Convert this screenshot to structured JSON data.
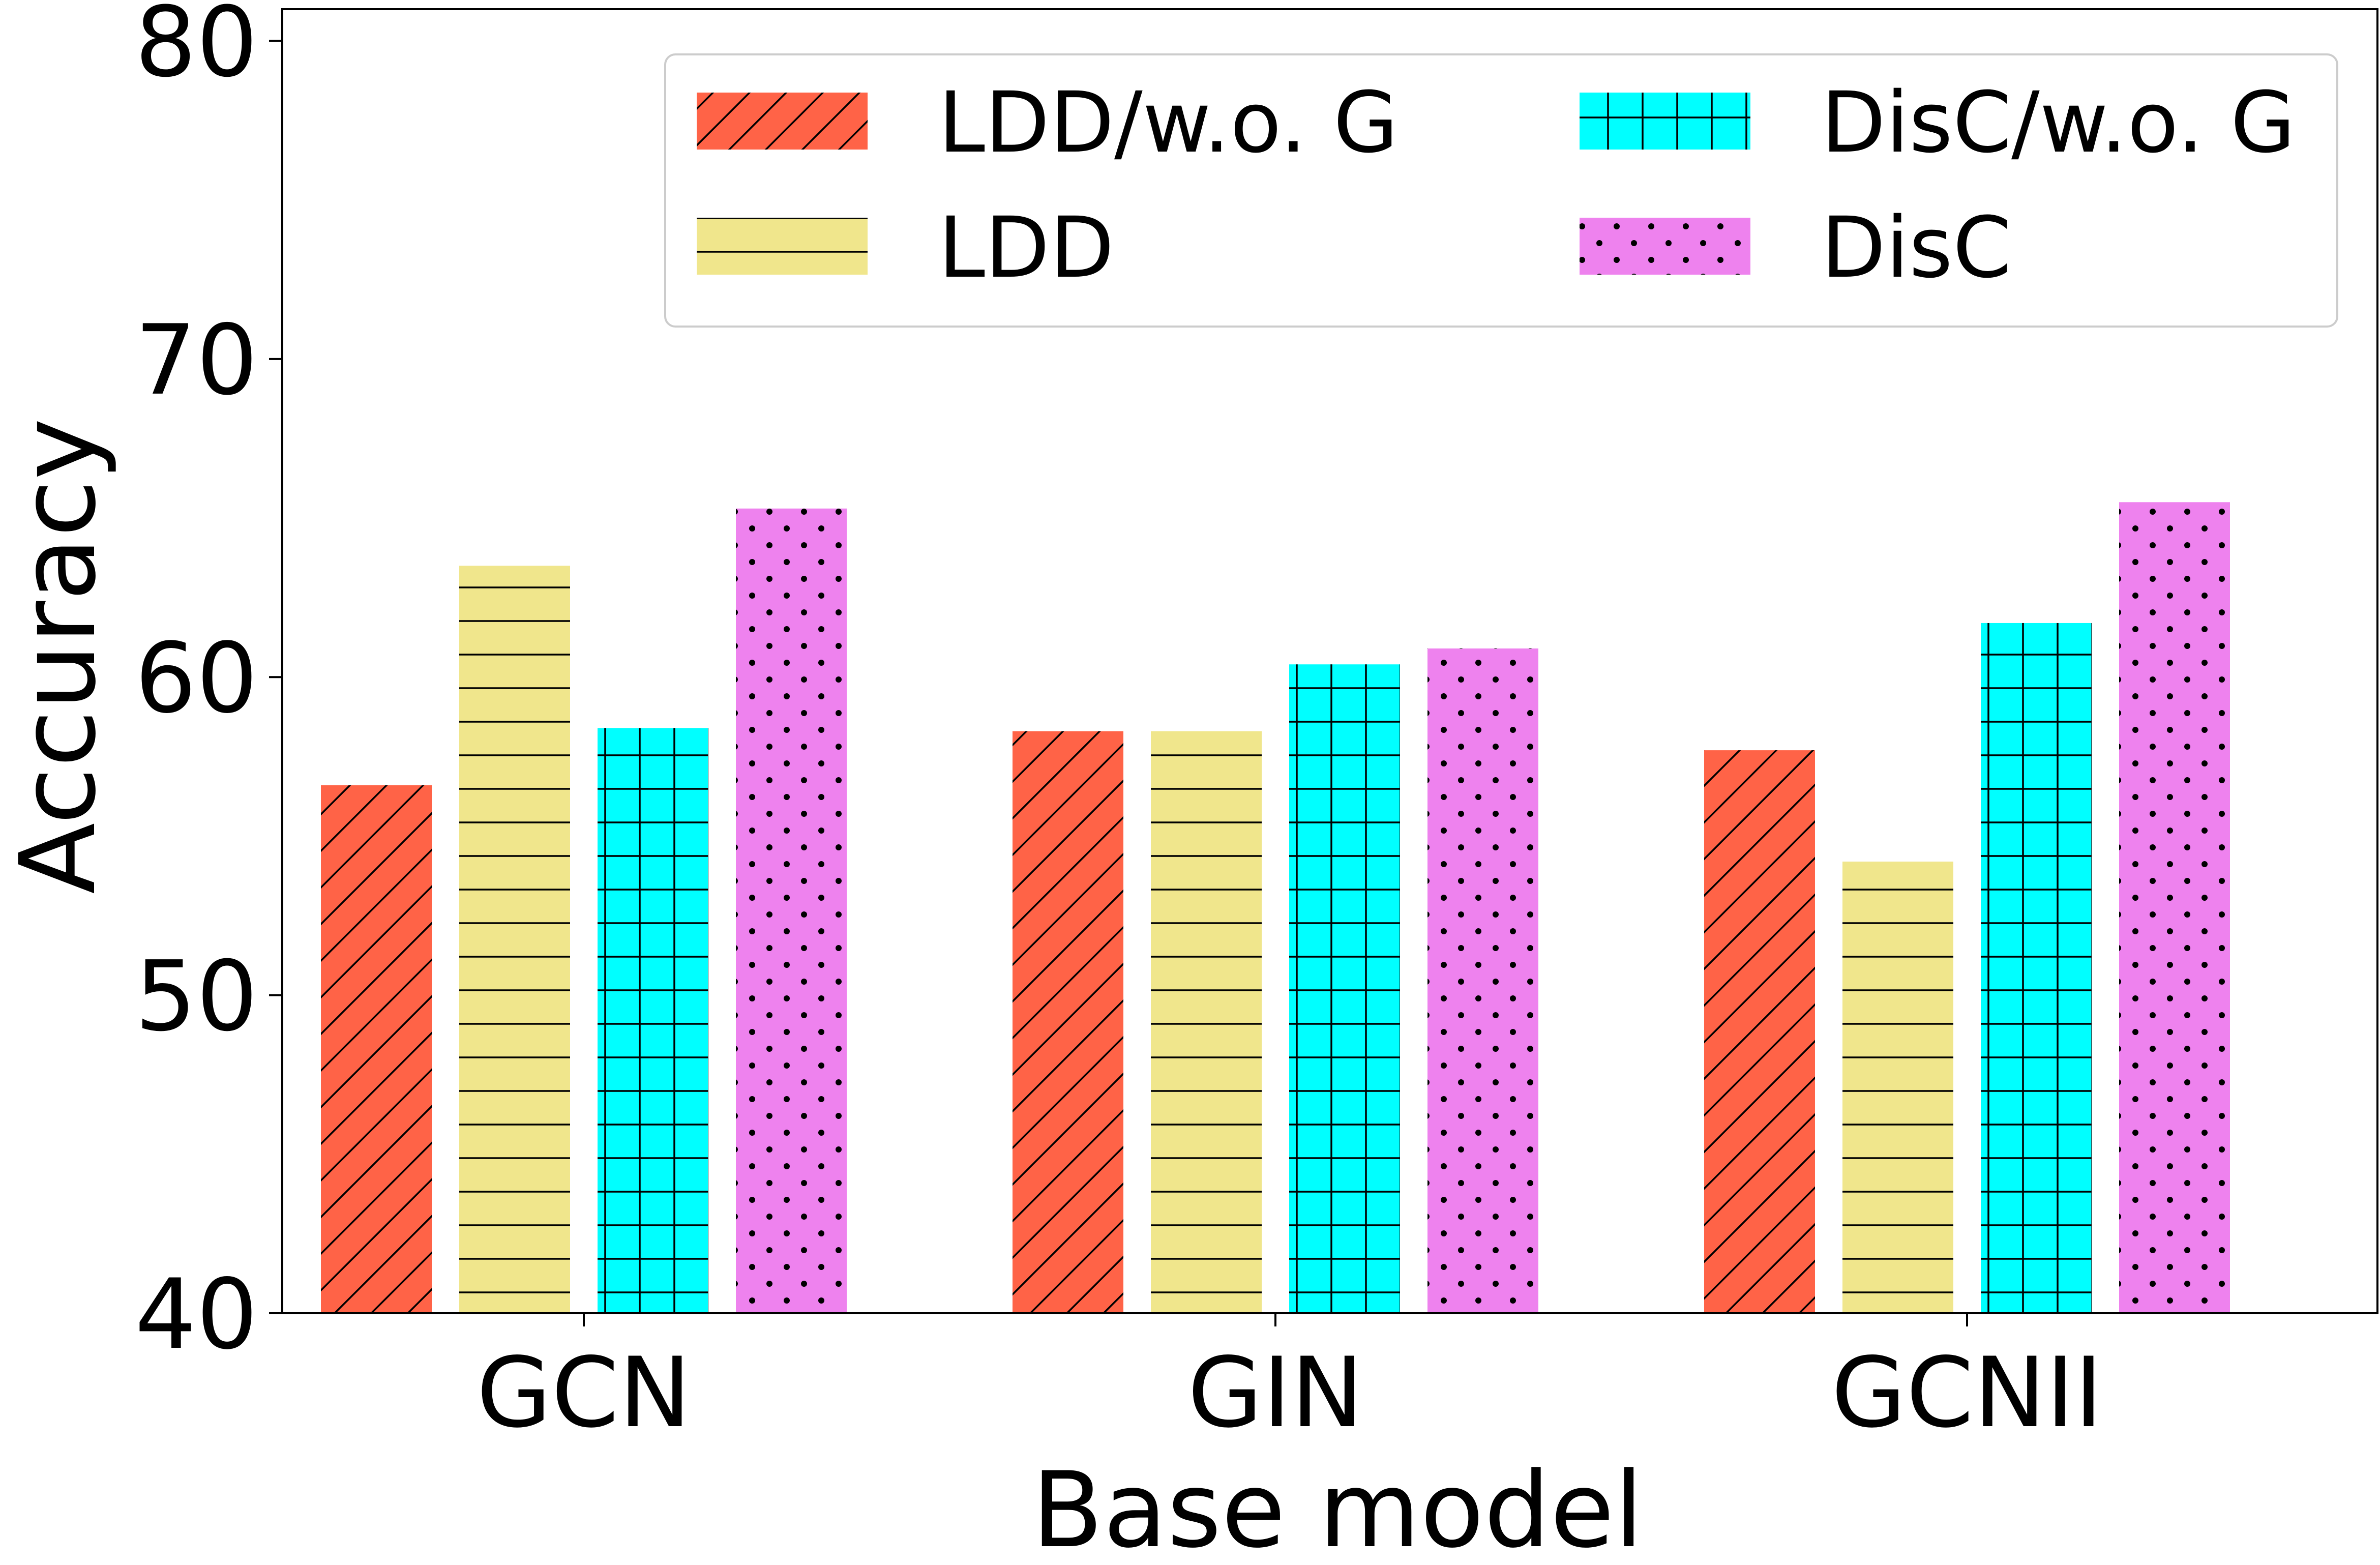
{
  "chart_data": {
    "type": "bar",
    "title": "",
    "xlabel": "Base model",
    "ylabel": "Accuracy",
    "ylim": [
      40,
      81
    ],
    "yticks": [
      40,
      50,
      60,
      70,
      80
    ],
    "categories": [
      "GCN",
      "GIN",
      "GCNII"
    ],
    "series": [
      {
        "name": "LDD/w.o. G",
        "values": [
          56.6,
          58.3,
          57.7
        ],
        "color": "#ff6347",
        "pattern": "diagonal"
      },
      {
        "name": "LDD",
        "values": [
          63.5,
          58.3,
          54.2
        ],
        "color": "#f0e68c",
        "pattern": "horizontal"
      },
      {
        "name": "DisC/w.o. G",
        "values": [
          58.4,
          60.4,
          61.7
        ],
        "color": "#00ffff",
        "pattern": "grid"
      },
      {
        "name": "DisC",
        "values": [
          65.3,
          60.9,
          65.5
        ],
        "color": "#ee82ee",
        "pattern": "dots"
      }
    ],
    "legend": {
      "position": "top-right",
      "columns": 2
    },
    "grid": false
  }
}
